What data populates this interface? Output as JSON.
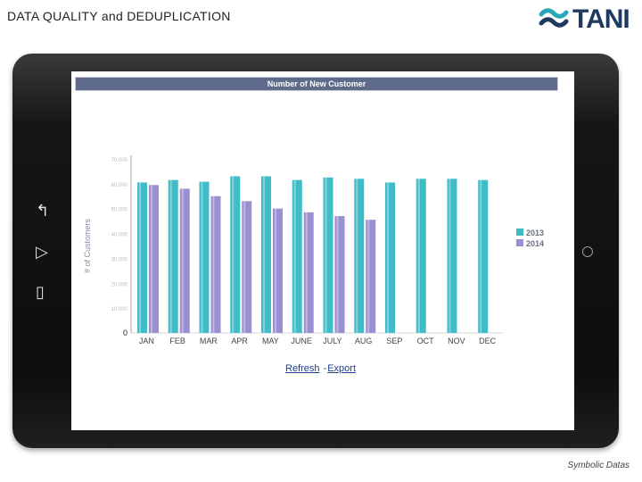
{
  "slide": {
    "title": "DATA QUALITY and DEDUPLICATION",
    "caption": "Symbolic Datas"
  },
  "logo": {
    "text": "TANI",
    "mark_color": "#2aa6b6",
    "text_color": "#1e3a5f"
  },
  "tablet": {
    "side_icons": [
      "back-arrow",
      "menu",
      "copy"
    ],
    "side_glyphs": [
      "↰",
      "▷",
      "▯"
    ]
  },
  "chart_links": {
    "refresh": "Refresh",
    "separator": "-",
    "export": "Export"
  },
  "chart_data": {
    "type": "bar",
    "title": "Number of New Customer",
    "xlabel": "",
    "ylabel": "# of Customers",
    "categories": [
      "JAN",
      "FEB",
      "MAR",
      "APR",
      "MAY",
      "JUNE",
      "JULY",
      "AUG",
      "SEP",
      "OCT",
      "NOV",
      "DEC"
    ],
    "ylim": [
      0,
      70000
    ],
    "yticks": [
      0,
      10000,
      20000,
      30000,
      40000,
      50000,
      60000,
      70000
    ],
    "ytick_labels": [
      "0",
      "10,000",
      "20,000",
      "30,000",
      "40,000",
      "50,000",
      "60,000",
      "70,000"
    ],
    "series": [
      {
        "name": "2013",
        "color": "#3fbcc8",
        "values": [
          60500,
          61500,
          60800,
          63000,
          63000,
          61500,
          62500,
          62000,
          60500,
          62000,
          62000,
          61500
        ]
      },
      {
        "name": "2014",
        "color": "#9b8fcf",
        "values": [
          59500,
          58000,
          55000,
          53000,
          50000,
          48500,
          47000,
          45500,
          null,
          null,
          null,
          null
        ]
      }
    ],
    "legend_position": "right",
    "grid": false
  }
}
